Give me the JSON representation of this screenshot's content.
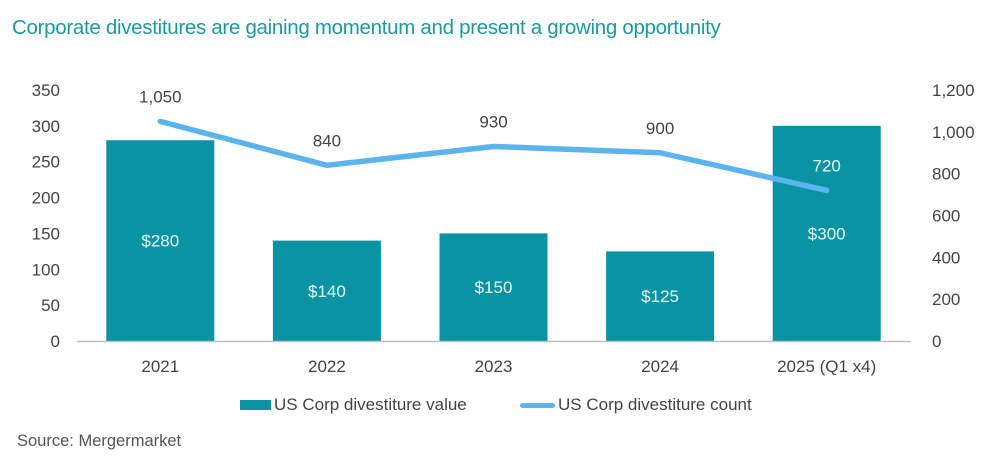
{
  "title": "Corporate divestitures are gaining momentum and present a growing opportunity",
  "source": "Source: Mergermarket",
  "colors": {
    "title": "#1a9aa0",
    "bar": "#0a93a3",
    "line": "#5bb4ee",
    "axis": "#bfbfbf",
    "text": "#444444"
  },
  "chart_data": {
    "type": "bar",
    "title": "Corporate divestitures are gaining momentum and present a growing opportunity",
    "categories": [
      "2021",
      "2022",
      "2023",
      "2024",
      "2025 (Q1 x4)"
    ],
    "series": [
      {
        "name": "US Corp divestiture value",
        "type": "bar",
        "axis": "left",
        "values": [
          280,
          140,
          150,
          125,
          300
        ],
        "labels": [
          "$280",
          "$140",
          "$150",
          "$125",
          "$300"
        ]
      },
      {
        "name": "US Corp divestiture count",
        "type": "line",
        "axis": "right",
        "values": [
          1050,
          840,
          930,
          900,
          720
        ],
        "labels": [
          "1,050",
          "840",
          "930",
          "900",
          "720"
        ]
      }
    ],
    "y_left": {
      "ylim": [
        0,
        350
      ],
      "ticks": [
        "0",
        "50",
        "100",
        "150",
        "200",
        "250",
        "300",
        "350"
      ],
      "tick_values": [
        0,
        50,
        100,
        150,
        200,
        250,
        300,
        350
      ]
    },
    "y_right": {
      "ylim": [
        0,
        1200
      ],
      "ticks": [
        "0",
        "200",
        "400",
        "600",
        "800",
        "1,000",
        "1,200"
      ],
      "tick_values": [
        0,
        200,
        400,
        600,
        800,
        1000,
        1200
      ]
    },
    "xlabel": "",
    "ylabel": "",
    "grid": false,
    "legend": "bottom"
  }
}
